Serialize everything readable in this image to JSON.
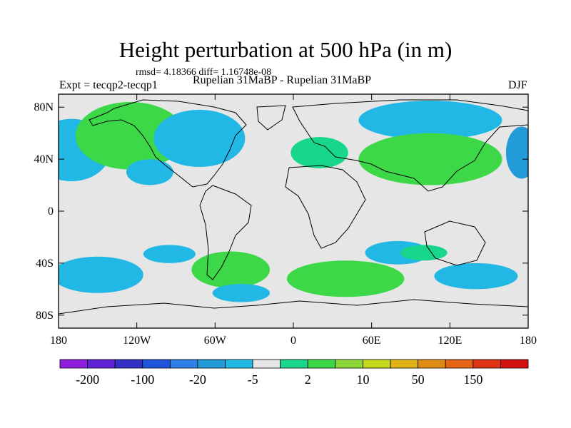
{
  "chart_data": {
    "type": "heatmap",
    "title": "Height perturbation at 500 hPa (in m)",
    "stats": "rmsd= 4.18366 diff= 1.16748e-08",
    "experiment": "Expt = tecqp2-tecqp1",
    "case": "Rupelian  31MaBP - Rupelian  31MaBP",
    "season": "DJF",
    "projection": "cylindrical equidistant",
    "xlim": [
      -180,
      180
    ],
    "ylim": [
      -90,
      90
    ],
    "x_ticks": [
      {
        "value": -180,
        "label": "180"
      },
      {
        "value": -120,
        "label": "120W"
      },
      {
        "value": -60,
        "label": "60W"
      },
      {
        "value": 0,
        "label": "0"
      },
      {
        "value": 60,
        "label": "60E"
      },
      {
        "value": 120,
        "label": "120E"
      },
      {
        "value": 180,
        "label": "180"
      }
    ],
    "y_ticks": [
      {
        "value": 80,
        "label": "80N"
      },
      {
        "value": 40,
        "label": "40N"
      },
      {
        "value": 0,
        "label": "0"
      },
      {
        "value": -40,
        "label": "40S"
      },
      {
        "value": -80,
        "label": "80S"
      }
    ],
    "colorbar": {
      "colors": [
        "#8f1fe0",
        "#6020d8",
        "#3330c8",
        "#1f55dc",
        "#2e7fe8",
        "#229bd8",
        "#22b8e6",
        "#e6e6e6",
        "#18d68c",
        "#3cd848",
        "#8cd838",
        "#c4d81c",
        "#e0b414",
        "#e08c14",
        "#e66414",
        "#e03214",
        "#d41010"
      ],
      "tick_labels": [
        {
          "after_index": 0,
          "label": "-200"
        },
        {
          "after_index": 2,
          "label": "-100"
        },
        {
          "after_index": 4,
          "label": "-20"
        },
        {
          "after_index": 6,
          "label": "-5"
        },
        {
          "after_index": 8,
          "label": "2"
        },
        {
          "after_index": 10,
          "label": "10"
        },
        {
          "after_index": 12,
          "label": "50"
        },
        {
          "after_index": 14,
          "label": "150"
        }
      ]
    },
    "anomalies": [
      {
        "lon": -165,
        "lat": 45,
        "rlon": 20,
        "rlat": 16,
        "level": -20
      },
      {
        "lon": -170,
        "lat": 47,
        "rlon": 30,
        "rlat": 24,
        "level": -5
      },
      {
        "lon": -125,
        "lat": 60,
        "rlon": 32,
        "rlat": 18,
        "level": 20
      },
      {
        "lon": -125,
        "lat": 58,
        "rlon": 42,
        "rlat": 26,
        "level": 5
      },
      {
        "lon": -72,
        "lat": 58,
        "rlon": 28,
        "rlat": 17,
        "level": -10
      },
      {
        "lon": -72,
        "lat": 56,
        "rlon": 35,
        "rlat": 22,
        "level": -3
      },
      {
        "lon": -110,
        "lat": 30,
        "rlon": 18,
        "rlat": 10,
        "level": -3
      },
      {
        "lon": 90,
        "lat": 70,
        "rlon": 25,
        "rlat": 9,
        "level": -8
      },
      {
        "lon": 105,
        "lat": 70,
        "rlon": 55,
        "rlat": 15,
        "level": -3
      },
      {
        "lon": 115,
        "lat": 42,
        "rlon": 28,
        "rlat": 14,
        "level": 20
      },
      {
        "lon": 105,
        "lat": 40,
        "rlon": 55,
        "rlat": 20,
        "level": 5
      },
      {
        "lon": 20,
        "lat": 45,
        "rlon": 22,
        "rlat": 12,
        "level": 3
      },
      {
        "lon": 175,
        "lat": 45,
        "rlon": 12,
        "rlat": 20,
        "level": -10
      },
      {
        "lon": -155,
        "lat": -50,
        "rlon": 22,
        "rlat": 9,
        "level": -20
      },
      {
        "lon": -150,
        "lat": -49,
        "rlon": 35,
        "rlat": 14,
        "level": -5
      },
      {
        "lon": -45,
        "lat": -45,
        "rlon": 15,
        "rlat": 8,
        "level": 20
      },
      {
        "lon": -48,
        "lat": -45,
        "rlon": 30,
        "rlat": 14,
        "level": 5
      },
      {
        "lon": -95,
        "lat": -33,
        "rlon": 20,
        "rlat": 7,
        "level": -3
      },
      {
        "lon": 40,
        "lat": -52,
        "rlon": 45,
        "rlat": 14,
        "level": 5
      },
      {
        "lon": 80,
        "lat": -32,
        "rlon": 25,
        "rlat": 9,
        "level": -3
      },
      {
        "lon": 100,
        "lat": -32,
        "rlon": 18,
        "rlat": 6,
        "level": 3
      },
      {
        "lon": 140,
        "lat": -50,
        "rlon": 32,
        "rlat": 10,
        "level": -5
      },
      {
        "lon": -40,
        "lat": -63,
        "rlon": 22,
        "rlat": 7,
        "level": -3
      }
    ]
  }
}
